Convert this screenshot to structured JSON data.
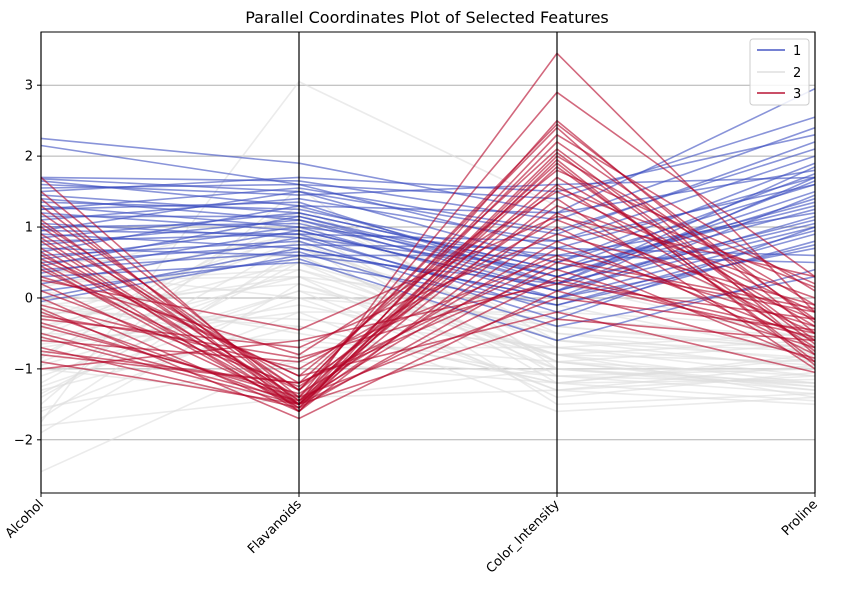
{
  "chart_data": {
    "type": "line",
    "title": "Parallel Coordinates Plot of Selected Features",
    "categories": [
      "Alcohol",
      "Flavanoids",
      "Color_Intensity",
      "Proline"
    ],
    "ylim": [
      -2.75,
      3.75
    ],
    "yticks": [
      "3",
      "2",
      "1",
      "0",
      "−1",
      "−2"
    ],
    "grid": true,
    "legend_placement": "top-right",
    "colors": {
      "1": "#3b4cc0",
      "2": "#dddddd",
      "3": "#b40426"
    },
    "series": [
      {
        "name": "1",
        "color": "#3b4cc0",
        "lines": [
          [
            2.25,
            1.9,
            1.2,
            2.95
          ],
          [
            2.15,
            1.6,
            1.4,
            2.55
          ],
          [
            1.7,
            1.65,
            1.1,
            2.4
          ],
          [
            1.68,
            1.5,
            0.9,
            2.2
          ],
          [
            1.65,
            1.3,
            1.2,
            1.8
          ],
          [
            1.55,
            1.6,
            0.7,
            1.7
          ],
          [
            1.45,
            1.2,
            0.4,
            1.75
          ],
          [
            1.4,
            1.1,
            0.3,
            1.5
          ],
          [
            1.35,
            1.25,
            0.5,
            1.9
          ],
          [
            1.3,
            1.0,
            0.6,
            1.2
          ],
          [
            1.25,
            1.35,
            0.2,
            1.65
          ],
          [
            1.2,
            0.95,
            0.1,
            1.0
          ],
          [
            1.15,
            1.15,
            0.3,
            1.4
          ],
          [
            1.1,
            1.4,
            0.8,
            2.0
          ],
          [
            1.05,
            0.85,
            -0.1,
            0.9
          ],
          [
            1.0,
            1.05,
            0.2,
            1.1
          ],
          [
            0.95,
            1.5,
            0.5,
            1.6
          ],
          [
            0.9,
            0.7,
            0.0,
            0.7
          ],
          [
            0.85,
            1.2,
            0.4,
            1.3
          ],
          [
            0.8,
            0.9,
            -0.2,
            0.8
          ],
          [
            0.75,
            1.1,
            0.1,
            1.7
          ],
          [
            0.7,
            0.6,
            0.6,
            0.5
          ],
          [
            0.65,
            1.3,
            0.3,
            1.25
          ],
          [
            0.6,
            0.8,
            -0.3,
            1.0
          ],
          [
            0.55,
            1.0,
            0.0,
            1.45
          ],
          [
            0.5,
            0.75,
            0.7,
            0.6
          ],
          [
            0.45,
            1.15,
            0.2,
            1.85
          ],
          [
            0.4,
            0.65,
            -0.4,
            0.3
          ],
          [
            0.35,
            0.95,
            0.1,
            1.15
          ],
          [
            0.3,
            0.5,
            -0.1,
            0.75
          ],
          [
            0.2,
            0.85,
            0.4,
            1.35
          ],
          [
            0.1,
            0.55,
            -0.6,
            0.4
          ],
          [
            0.0,
            0.7,
            0.0,
            0.95
          ],
          [
            -0.05,
            0.6,
            0.2,
            1.05
          ],
          [
            1.6,
            1.45,
            1.6,
            1.7
          ],
          [
            1.5,
            1.7,
            1.5,
            2.3
          ],
          [
            0.95,
            0.9,
            0.8,
            1.6
          ],
          [
            1.25,
            1.55,
            0.95,
            2.1
          ]
        ]
      },
      {
        "name": "2",
        "color": "#dddddd",
        "lines": [
          [
            -2.45,
            -0.8,
            -1.1,
            -1.2
          ],
          [
            -1.9,
            0.2,
            -0.8,
            -0.9
          ],
          [
            -1.75,
            3.05,
            1.3,
            -0.6
          ],
          [
            -1.6,
            -0.2,
            -1.6,
            -1.4
          ],
          [
            -1.5,
            1.55,
            -1.0,
            -1.0
          ],
          [
            -1.4,
            0.6,
            -0.9,
            -1.3
          ],
          [
            -1.3,
            -0.4,
            -1.2,
            -0.8
          ],
          [
            -1.2,
            0.8,
            -0.7,
            -1.1
          ],
          [
            -1.1,
            0.1,
            -1.3,
            -0.95
          ],
          [
            -1.0,
            -1.4,
            -1.0,
            -1.2
          ],
          [
            -0.9,
            0.4,
            -0.5,
            -0.7
          ],
          [
            -0.8,
            1.0,
            -1.1,
            -1.35
          ],
          [
            -0.7,
            -0.1,
            -0.8,
            -0.6
          ],
          [
            -0.6,
            0.3,
            -1.4,
            -1.05
          ],
          [
            -0.5,
            -0.6,
            -0.9,
            -1.25
          ],
          [
            -0.4,
            0.5,
            -0.6,
            -0.85
          ],
          [
            -0.3,
            0.9,
            -1.2,
            -1.15
          ],
          [
            -0.2,
            -0.3,
            -0.7,
            -0.5
          ],
          [
            -0.1,
            0.2,
            -1.0,
            -1.3
          ],
          [
            0.0,
            0.7,
            -0.4,
            -0.75
          ],
          [
            0.1,
            -0.5,
            -1.1,
            -1.0
          ],
          [
            0.2,
            0.4,
            -0.8,
            -1.2
          ],
          [
            0.3,
            1.2,
            -0.5,
            -0.9
          ],
          [
            0.4,
            0.0,
            -1.3,
            -1.1
          ],
          [
            0.5,
            0.6,
            -0.9,
            -0.65
          ],
          [
            -1.55,
            -0.9,
            -1.2,
            -1.45
          ],
          [
            -1.25,
            0.0,
            -0.3,
            -0.55
          ],
          [
            -0.85,
            1.3,
            -0.6,
            -1.0
          ],
          [
            -0.65,
            -0.2,
            -0.2,
            -0.4
          ],
          [
            -0.45,
            0.8,
            -1.5,
            -1.35
          ],
          [
            -0.25,
            0.3,
            -0.1,
            -0.8
          ],
          [
            -0.05,
            -0.7,
            -0.7,
            -0.95
          ],
          [
            0.15,
            0.9,
            0.2,
            -0.6
          ],
          [
            -1.8,
            -1.4,
            -1.3,
            -1.5
          ],
          [
            -1.35,
            0.5,
            -1.0,
            -1.25
          ],
          [
            -0.95,
            0.1,
            -0.4,
            -0.7
          ],
          [
            -0.55,
            1.1,
            -0.9,
            -1.1
          ],
          [
            -0.15,
            -0.4,
            -1.2,
            -0.85
          ],
          [
            0.25,
            0.3,
            -0.8,
            -1.4
          ],
          [
            -1.7,
            0.7,
            -0.6,
            -0.75
          ]
        ]
      },
      {
        "name": "3",
        "color": "#b40426",
        "lines": [
          [
            1.7,
            -1.5,
            3.45,
            -0.2
          ],
          [
            1.5,
            -1.4,
            2.9,
            0.3
          ],
          [
            1.4,
            -1.6,
            2.5,
            -0.5
          ],
          [
            1.2,
            -1.3,
            2.4,
            -0.8
          ],
          [
            1.1,
            -1.5,
            2.3,
            0.1
          ],
          [
            1.0,
            -1.45,
            2.2,
            -0.3
          ],
          [
            0.9,
            -1.2,
            2.1,
            -0.6
          ],
          [
            0.8,
            -1.55,
            2.0,
            -0.1
          ],
          [
            0.7,
            -1.4,
            1.9,
            -0.9
          ],
          [
            0.6,
            -1.1,
            1.8,
            0.2
          ],
          [
            0.5,
            -1.5,
            1.7,
            -0.4
          ],
          [
            0.4,
            -1.3,
            1.6,
            -0.7
          ],
          [
            0.3,
            -0.8,
            1.5,
            -0.2
          ],
          [
            0.2,
            -1.5,
            1.4,
            -1.0
          ],
          [
            0.1,
            -1.25,
            1.3,
            0.0
          ],
          [
            0.0,
            -1.6,
            1.2,
            -0.5
          ],
          [
            -0.1,
            -1.0,
            1.1,
            -0.3
          ],
          [
            -0.2,
            -1.5,
            1.0,
            -0.8
          ],
          [
            -0.3,
            -0.7,
            0.9,
            -0.1
          ],
          [
            -0.4,
            -1.35,
            0.8,
            -0.6
          ],
          [
            -0.5,
            -1.45,
            0.7,
            -0.4
          ],
          [
            -0.6,
            -0.9,
            0.6,
            -0.9
          ],
          [
            -0.7,
            -1.55,
            0.5,
            -0.2
          ],
          [
            -0.8,
            -1.2,
            0.4,
            -0.7
          ],
          [
            -0.9,
            -1.5,
            0.3,
            -0.5
          ],
          [
            -1.0,
            -0.6,
            0.2,
            -0.3
          ],
          [
            -0.15,
            -1.7,
            0.1,
            -0.85
          ],
          [
            -0.35,
            -1.4,
            0.0,
            -0.45
          ],
          [
            0.55,
            -1.1,
            -0.2,
            -1.05
          ],
          [
            0.85,
            -1.5,
            -0.3,
            -0.6
          ],
          [
            1.05,
            -1.3,
            2.45,
            -0.35
          ],
          [
            0.25,
            -0.45,
            1.15,
            0.3
          ],
          [
            -0.55,
            -1.5,
            1.85,
            -0.75
          ],
          [
            -0.75,
            -1.2,
            0.55,
            -0.15
          ],
          [
            0.65,
            -1.6,
            1.95,
            -0.95
          ],
          [
            -0.25,
            -0.85,
            0.25,
            -0.55
          ],
          [
            1.3,
            -1.45,
            1.55,
            0.15
          ],
          [
            0.45,
            -1.55,
            2.05,
            -0.65
          ]
        ]
      }
    ]
  }
}
